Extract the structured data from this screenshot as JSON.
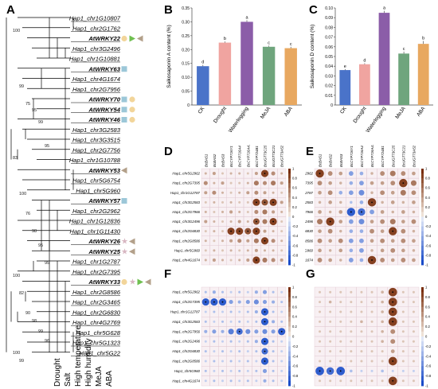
{
  "panel_labels": [
    "A",
    "B",
    "C",
    "D",
    "E",
    "F",
    "G"
  ],
  "tree": {
    "leaves": [
      {
        "name": "Hap1_chr1G10807",
        "bold": false
      },
      {
        "name": "Hap1_chr2G1762",
        "bold": false
      },
      {
        "name": "AtWRKY22",
        "bold": true
      },
      {
        "name": "Hap1_chr3G2496",
        "bold": false
      },
      {
        "name": "Hap1_chr1G10881",
        "bold": false
      },
      {
        "name": "AtWRKY63",
        "bold": true
      },
      {
        "name": "Hap1_chr4G1674",
        "bold": false
      },
      {
        "name": "Hap1_chr2G7956",
        "bold": false
      },
      {
        "name": "AtWRKY70",
        "bold": true
      },
      {
        "name": "AtWRKY54",
        "bold": true
      },
      {
        "name": "AtWRKY46",
        "bold": true
      },
      {
        "name": "Hap1_chr3G2583",
        "bold": false
      },
      {
        "name": "Hap1_chr3G3515",
        "bold": false
      },
      {
        "name": "Hap1_chr2G7756",
        "bold": false
      },
      {
        "name": "Hap1_chr1G10788",
        "bold": false
      },
      {
        "name": "AtWRKY53",
        "bold": true
      },
      {
        "name": "Hap1_chr5G6754",
        "bold": false
      },
      {
        "name": "Hap1_chr5G960",
        "bold": false
      },
      {
        "name": "AtWRKY57",
        "bold": true
      },
      {
        "name": "Hap1_chr2G2962",
        "bold": false
      },
      {
        "name": "Hap1_chr1G12836",
        "bold": false
      },
      {
        "name": "Hap1_chr1G11430",
        "bold": false
      },
      {
        "name": "AtWRKY26",
        "bold": true
      },
      {
        "name": "AtWRKY25",
        "bold": true
      },
      {
        "name": "Hap1_chr1G2787",
        "bold": false
      },
      {
        "name": "Hap1_chr2G7395",
        "bold": false
      },
      {
        "name": "AtWRKY33",
        "bold": true
      },
      {
        "name": "Hap1_chr2G8586",
        "bold": false
      },
      {
        "name": "Hap1_chr2G3465",
        "bold": false
      },
      {
        "name": "Hap1_chr2G6830",
        "bold": false
      },
      {
        "name": "Hap1_chr4G2769",
        "bold": false
      },
      {
        "name": "Hap1_chr5G628",
        "bold": false
      },
      {
        "name": "Hap1_chr5G1323",
        "bold": false
      },
      {
        "name": "Hap1_chr5G22",
        "bold": false
      }
    ],
    "bootstrap": [
      "100",
      "99",
      "75",
      "95",
      "99",
      "95",
      "83",
      "100",
      "76",
      "98",
      "95",
      "95",
      "100",
      "82",
      "90",
      "98",
      "99",
      "96",
      "100",
      "99"
    ],
    "stress_labels": [
      "Drought",
      "Salt",
      "High temperature",
      "High humidity",
      "MeJA",
      "ABA"
    ]
  },
  "chart_data": [
    {
      "type": "bar",
      "panel": "B",
      "categories": [
        "CK",
        "Drought",
        "Waterlogging",
        "MeJA",
        "ABA"
      ],
      "values": [
        0.14,
        0.225,
        0.3,
        0.21,
        0.205
      ],
      "errors": [
        0.005,
        0.004,
        0.006,
        0.004,
        0.005
      ],
      "letters": [
        "d",
        "b",
        "a",
        "c",
        "c"
      ],
      "ylabel": "Saikosaponin A content (%)",
      "ylim": [
        0,
        0.35
      ],
      "yticks": [
        "0",
        "0.05",
        "0.10",
        "0.15",
        "0.20",
        "0.25",
        "0.30",
        "0.35"
      ],
      "colors": [
        "#4a73c9",
        "#f0a4a0",
        "#8b5da8",
        "#6fa57d",
        "#e8a860"
      ]
    },
    {
      "type": "bar",
      "panel": "C",
      "categories": [
        "CK",
        "Drought",
        "Waterlogging",
        "MeJA",
        "ABA"
      ],
      "values": [
        0.036,
        0.042,
        0.095,
        0.053,
        0.063
      ],
      "errors": [
        0.001,
        0.001,
        0.002,
        0.002,
        0.003
      ],
      "letters": [
        "e",
        "d",
        "a",
        "c",
        "b"
      ],
      "ylabel": "Saikosaponin D content (%)",
      "ylim": [
        0,
        0.1
      ],
      "yticks": [
        "0",
        "0.01",
        "0.02",
        "0.03",
        "0.04",
        "0.05",
        "0.06",
        "0.07",
        "0.08",
        "0.09",
        "0.10"
      ],
      "colors": [
        "#4a73c9",
        "#f0a4a0",
        "#8b5da8",
        "#6fa57d",
        "#e8a860"
      ]
    },
    {
      "type": "heatmap",
      "panel": "D",
      "columns": [
        "BcBAS1",
        "BcBAS2",
        "BcBAS3",
        "BcCYP716Y1",
        "BcCYP716A4",
        "BcCYP716A41",
        "BcCYP724B1",
        "BcUGT73C25",
        "BcUGT73C21",
        "BcUGT73A52"
      ],
      "rows": [
        "Hap1_chr5G2962",
        "Hap1_chr2G7395",
        "Hap1_chr1G12787",
        "Hap1_chr3G2583",
        "Hap1_chr2G7966",
        "Hap1_chr3G2496",
        "Hap1_chr2G6830",
        "Hap1_chr2G8586",
        "Hap1_chr5G960",
        "Hap1_chr4G1674"
      ],
      "values": [
        [
          0.3,
          0.4,
          0.2,
          0.3,
          0.3,
          0.2,
          0.4,
          0.9,
          0.5,
          0.3
        ],
        [
          0.5,
          0.3,
          0.4,
          0.2,
          0.2,
          0.3,
          0.6,
          0.5,
          0.6,
          0.4
        ],
        [
          0.4,
          0.5,
          0.3,
          0.2,
          0.3,
          0.4,
          0.5,
          0.4,
          0.3,
          0.2
        ],
        [
          0.2,
          0.3,
          0.2,
          0.3,
          0.2,
          0.2,
          0.9,
          0.8,
          0.9,
          0.4
        ],
        [
          0.3,
          0.2,
          0.3,
          0.4,
          0.3,
          0.2,
          0.5,
          0.6,
          0.4,
          0.3
        ],
        [
          0.4,
          0.3,
          0.2,
          0.3,
          0.4,
          0.3,
          0.8,
          0.6,
          0.9,
          0.2
        ],
        [
          0.2,
          0.3,
          0.2,
          0.9,
          0.9,
          0.8,
          0.9,
          0.4,
          0.3,
          0.2
        ],
        [
          0.3,
          0.2,
          0.3,
          0.4,
          0.5,
          0.4,
          0.6,
          0.9,
          0.5,
          0.3
        ],
        [
          0.2,
          0.3,
          0.2,
          0.3,
          0.2,
          0.3,
          0.4,
          0.3,
          0.3,
          0.2
        ],
        [
          0.3,
          0.4,
          0.3,
          0.2,
          0.3,
          0.4,
          0.9,
          0.6,
          0.5,
          0.4
        ]
      ],
      "scale": [
        "1",
        "0.8",
        "0.6",
        "0.4",
        "0.2",
        "0",
        "-0.2",
        "-0.4",
        "-0.6",
        "-0.8",
        "-1"
      ]
    },
    {
      "type": "heatmap",
      "panel": "E",
      "columns": [
        "BcBAS1",
        "BcBAS2",
        "BcBAS3",
        "BcCYP716Y1",
        "BcCYP716A4",
        "BcCYP716A41",
        "BcCYP724B1",
        "BcUGT73C25",
        "BcUGT73C21",
        "BcUGT73A52"
      ],
      "rows": [
        "Hap1_chr5G2962",
        "Hap1_chr2G7395",
        "Hap1_chr1G12787",
        "Hap1_chr3G2583",
        "Hap1_chr2G7966",
        "Hap1_chr3G2496",
        "Hap1_chr2G6830",
        "Hap1_chr2G8586",
        "Hap1_chr5G960",
        "Hap1_chr4G1674"
      ],
      "values": [
        [
          0.9,
          0.5,
          0.4,
          -0.5,
          -0.4,
          0.3,
          0.5,
          0.6,
          0.5,
          0.4
        ],
        [
          0.5,
          0.4,
          0.3,
          -0.4,
          -0.5,
          0.4,
          0.4,
          0.5,
          0.9,
          0.6
        ],
        [
          0.4,
          0.5,
          -0.4,
          -0.5,
          -0.6,
          0.3,
          0.5,
          0.4,
          0.6,
          0.5
        ],
        [
          0.3,
          0.4,
          0.3,
          -0.3,
          -0.4,
          0.9,
          0.3,
          0.4,
          0.3,
          0.4
        ],
        [
          0.4,
          0.3,
          0.4,
          -0.9,
          -0.8,
          -0.5,
          0.4,
          0.3,
          0.4,
          0.3
        ],
        [
          0.6,
          0.9,
          0.4,
          -0.5,
          -0.6,
          0.4,
          0.5,
          0.6,
          0.4,
          0.5
        ],
        [
          0.4,
          0.5,
          0.3,
          -0.4,
          -0.4,
          0.5,
          0.4,
          0.9,
          0.5,
          0.3
        ],
        [
          0.5,
          0.4,
          0.5,
          -0.5,
          -0.5,
          0.4,
          0.5,
          0.4,
          0.5,
          0.4
        ],
        [
          0.4,
          0.3,
          0.4,
          -0.4,
          -0.5,
          0.3,
          0.4,
          0.5,
          0.4,
          0.3
        ],
        [
          0.5,
          0.4,
          0.3,
          -0.5,
          -0.4,
          0.9,
          0.5,
          0.4,
          0.5,
          0.4
        ]
      ],
      "scale": [
        "1",
        "0.8",
        "0.6",
        "0.4",
        "0.2",
        "0",
        "-0.2",
        "-0.4",
        "-0.6",
        "-0.8",
        "-1"
      ]
    },
    {
      "type": "heatmap",
      "panel": "F",
      "rows": [
        "Hap1_chr5G2962",
        "Hap1_chr2G7395",
        "Hap1_chr1G12787",
        "Hap1_chr3G2583",
        "Hap1_chr2G7956",
        "Hap1_chr2G2496",
        "Hap1_chr2G6830",
        "Hap1_chr2G8586",
        "Hap1_chr5G960",
        "Hap1_chr4G1674"
      ],
      "values": [
        [
          -0.3,
          -0.4,
          -0.3,
          -0.2,
          -0.3,
          -0.2,
          -0.4,
          -0.5,
          -0.3,
          -0.2
        ],
        [
          -0.9,
          -0.9,
          -0.9,
          -0.5,
          -0.4,
          -0.5,
          -0.6,
          -0.5,
          -0.4,
          -0.3
        ],
        [
          -0.2,
          -0.3,
          -0.2,
          -0.3,
          -0.2,
          -0.3,
          -0.4,
          -0.9,
          -0.3,
          -0.2
        ],
        [
          -0.3,
          -0.2,
          -0.3,
          -0.2,
          -0.3,
          -0.2,
          -0.3,
          -0.9,
          -0.4,
          -0.3
        ],
        [
          -0.4,
          -0.5,
          -0.4,
          -0.7,
          -0.8,
          -0.6,
          -0.5,
          -0.6,
          -0.5,
          -0.9
        ],
        [
          -0.2,
          -0.3,
          -0.2,
          -0.3,
          -0.2,
          -0.3,
          -0.4,
          -0.9,
          -0.3,
          -0.2
        ],
        [
          -0.3,
          -0.2,
          -0.3,
          -0.2,
          -0.3,
          -0.2,
          -0.3,
          -0.8,
          -0.3,
          -0.2
        ],
        [
          -0.2,
          -0.3,
          -0.2,
          -0.3,
          -0.2,
          -0.3,
          -0.2,
          -0.9,
          -0.3,
          -0.2
        ],
        [
          -0.3,
          -0.2,
          -0.3,
          -0.2,
          -0.3,
          -0.2,
          -0.3,
          -0.5,
          -0.3,
          -0.2
        ],
        [
          -0.2,
          -0.3,
          -0.2,
          -0.3,
          -0.2,
          -0.3,
          -0.2,
          -0.4,
          -0.3,
          -0.2
        ]
      ],
      "scale": [
        "1",
        "0.8",
        "0.6",
        "0.4",
        "0.2",
        "0",
        "-0.2",
        "-0.4",
        "-0.6",
        "-0.8",
        "-1"
      ]
    },
    {
      "type": "heatmap",
      "panel": "G",
      "values": [
        [
          0.2,
          0.2,
          0.2,
          0.2,
          0.2,
          0.2,
          0.3,
          0.9,
          0.2,
          0.2
        ],
        [
          0.2,
          0.3,
          0.2,
          0.2,
          0.2,
          0.2,
          0.3,
          0.9,
          0.2,
          0.2
        ],
        [
          0.2,
          0.2,
          0.2,
          0.2,
          0.2,
          0.2,
          0.3,
          0.9,
          0.2,
          0.2
        ],
        [
          0.2,
          0.2,
          0.2,
          0.2,
          0.3,
          0.2,
          0.3,
          0.9,
          0.2,
          0.2
        ],
        [
          0.2,
          0.2,
          0.2,
          0.2,
          0.2,
          0.2,
          0.3,
          0.5,
          0.2,
          0.2
        ],
        [
          0.2,
          0.2,
          0.2,
          0.2,
          0.2,
          0.2,
          0.3,
          0.5,
          0.2,
          0.2
        ],
        [
          0.2,
          0.2,
          0.2,
          0.2,
          0.2,
          0.2,
          0.2,
          0.4,
          0.2,
          0.2
        ],
        [
          0.2,
          0.2,
          0.2,
          0.2,
          0.2,
          0.2,
          0.2,
          0.9,
          0.2,
          0.2
        ],
        [
          -0.9,
          -0.8,
          -0.9,
          -0.3,
          -0.2,
          -0.2,
          -0.3,
          -0.2,
          -0.2,
          -0.2
        ],
        [
          0.2,
          0.2,
          0.2,
          0.2,
          0.2,
          0.2,
          0.2,
          0.9,
          0.2,
          0.2
        ]
      ],
      "scale": [
        "1",
        "0.8",
        "0.6",
        "0.4",
        "0.2",
        "0",
        "-0.2",
        "-0.4",
        "-0.6",
        "-0.8",
        "-1"
      ]
    }
  ]
}
